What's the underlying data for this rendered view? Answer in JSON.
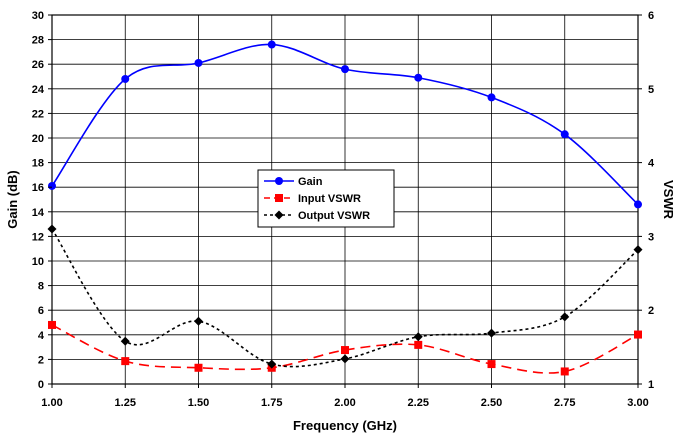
{
  "chart_data": {
    "type": "line",
    "title": "",
    "xlabel": "Frequency (GHz)",
    "ylabel": "Gain (dB)",
    "y2label": "VSWR",
    "xlim": [
      1.0,
      3.0
    ],
    "ylim": [
      0,
      30
    ],
    "y2lim": [
      1,
      6
    ],
    "xticks": [
      "1.00",
      "1.25",
      "1.50",
      "1.75",
      "2.00",
      "2.25",
      "2.50",
      "2.75",
      "3.00"
    ],
    "yticks": [
      "0",
      "2",
      "4",
      "6",
      "8",
      "10",
      "12",
      "14",
      "16",
      "18",
      "20",
      "22",
      "24",
      "26",
      "28",
      "30"
    ],
    "y2ticks": [
      "1",
      "2",
      "3",
      "4",
      "5",
      "6"
    ],
    "grid": true,
    "legend_position": "center",
    "x": [
      1.0,
      1.25,
      1.5,
      1.75,
      2.0,
      2.25,
      2.5,
      2.75,
      3.0
    ],
    "series": [
      {
        "name": "Gain",
        "axis": "left",
        "color": "#0000ff",
        "marker": "circle",
        "line": "solid",
        "values": [
          16.1,
          24.8,
          26.1,
          27.6,
          25.6,
          24.9,
          23.3,
          20.3,
          14.6
        ]
      },
      {
        "name": "Input VSWR",
        "axis": "right",
        "color": "#ff0000",
        "marker": "square",
        "line": "dashed",
        "values": [
          1.8,
          1.31,
          1.22,
          1.22,
          1.46,
          1.53,
          1.27,
          1.17,
          1.67
        ]
      },
      {
        "name": "Output VSWR",
        "axis": "right",
        "color": "#000000",
        "marker": "diamond",
        "line": "dotted",
        "values": [
          3.1,
          1.58,
          1.85,
          1.27,
          1.34,
          1.64,
          1.69,
          1.91,
          2.82
        ]
      }
    ]
  }
}
